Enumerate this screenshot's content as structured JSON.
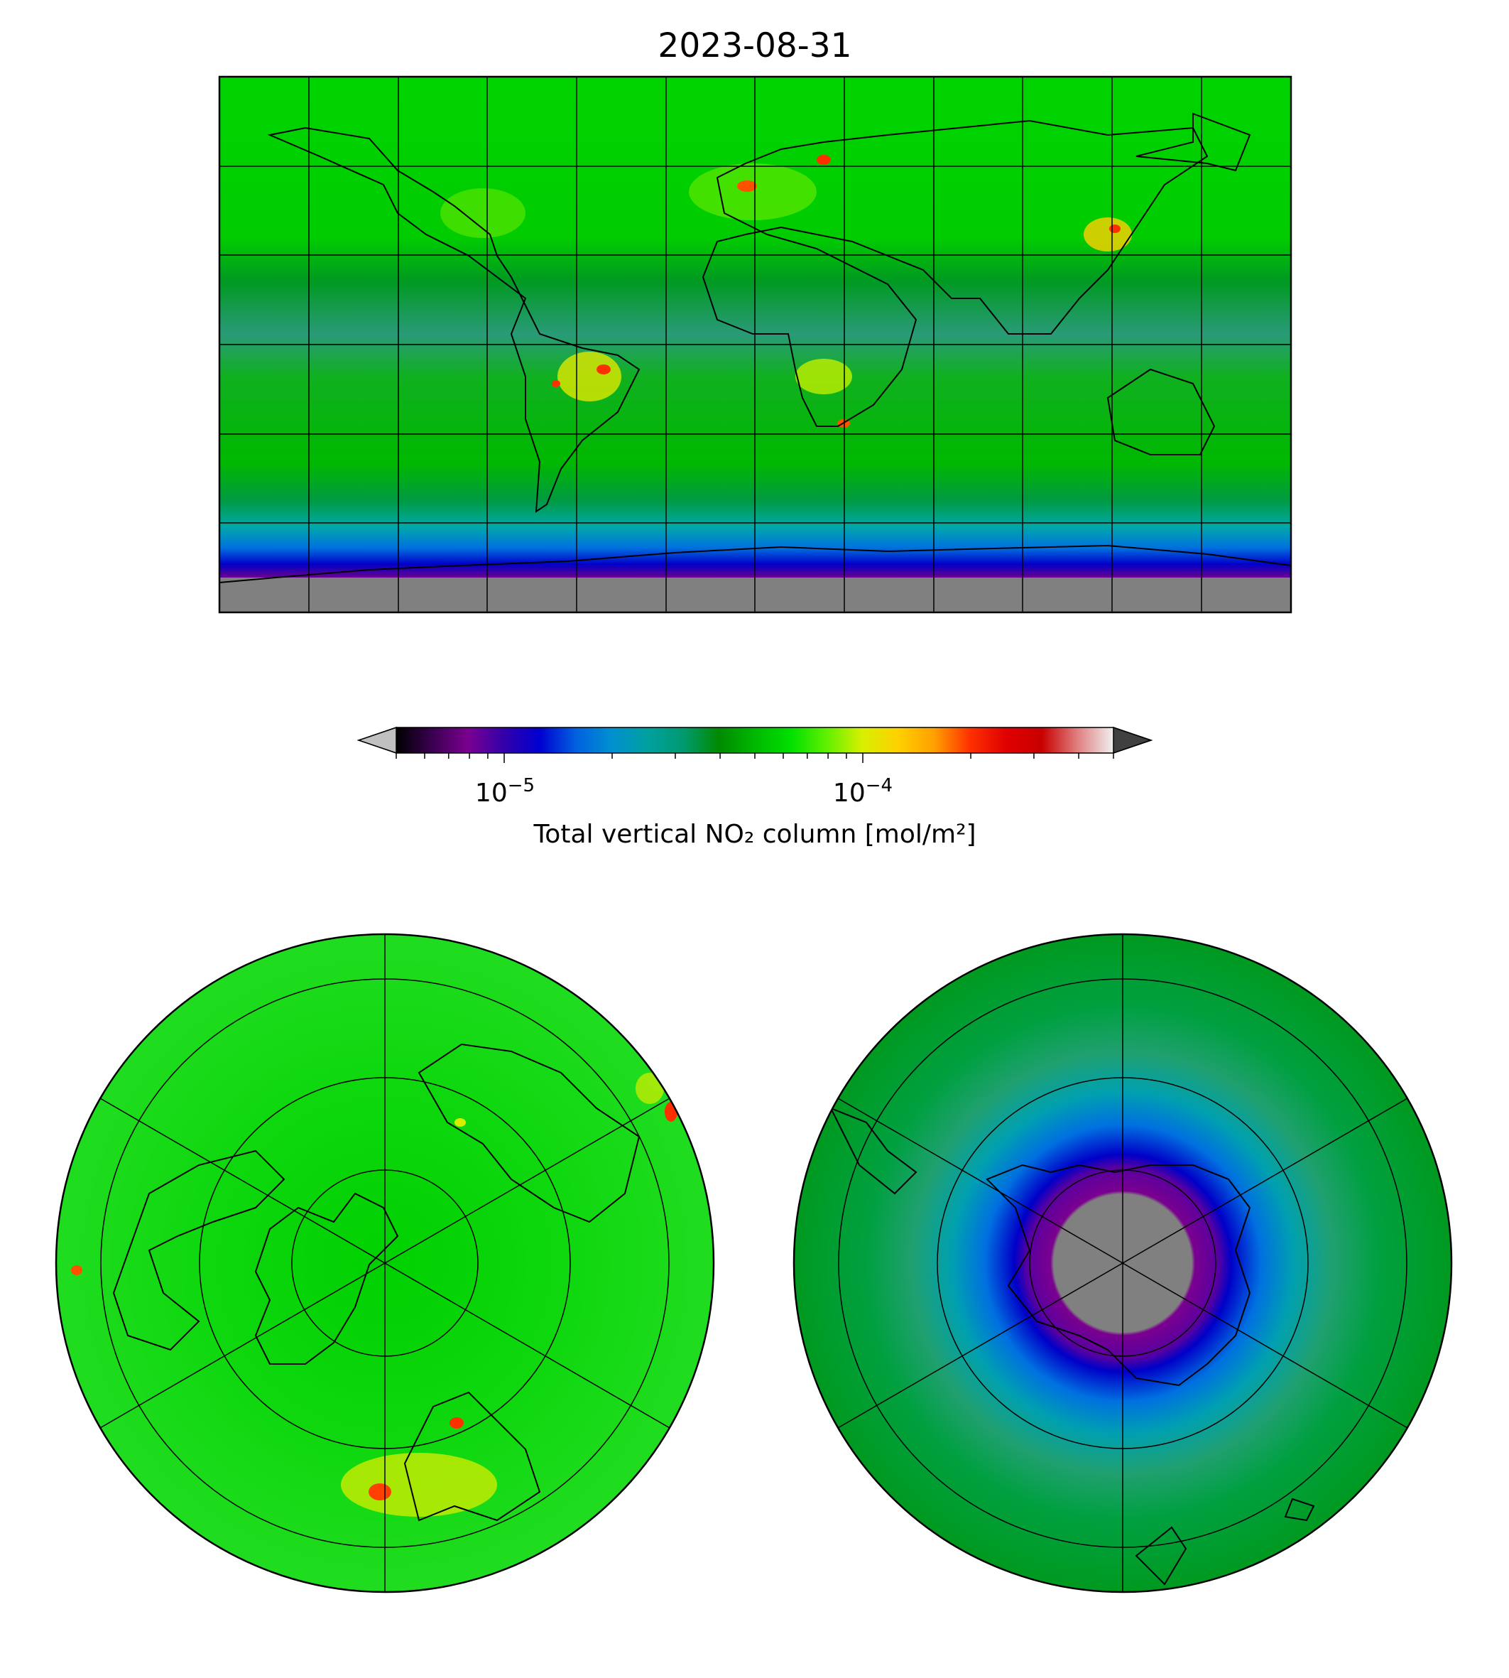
{
  "figure": {
    "title": "2023-08-31"
  },
  "colorbar": {
    "label": "Total vertical NO₂ column [mol/m²]",
    "scale": "log",
    "range": [
      5e-06,
      0.0005
    ],
    "major_ticks": [
      {
        "value": 1e-05,
        "base": "10",
        "exp": "−5"
      },
      {
        "value": 0.0001,
        "base": "10",
        "exp": "−4"
      }
    ],
    "extend": "both",
    "under_color": "#c0c0c0",
    "over_color": "#404040",
    "colors": [
      "#000000",
      "#3a0050",
      "#7a008f",
      "#3300aa",
      "#0000d0",
      "#0060e0",
      "#0090d0",
      "#00a0a0",
      "#009a70",
      "#008a00",
      "#00b800",
      "#00e000",
      "#60f000",
      "#d8f000",
      "#ffd000",
      "#ffa000",
      "#ff3000",
      "#e00000",
      "#c80000",
      "#e08080",
      "#f0f0f0"
    ]
  },
  "maps": {
    "global": {
      "projection": "plate-carree",
      "no_data_color": "#808080"
    },
    "north_polar": {
      "projection": "north-polar-stereographic"
    },
    "south_polar": {
      "projection": "south-polar-stereographic",
      "no_data_color": "#808080"
    }
  }
}
